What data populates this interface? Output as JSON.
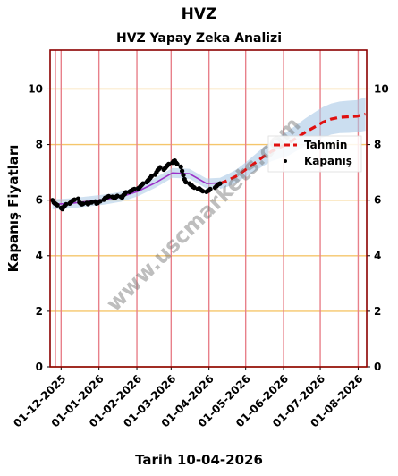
{
  "chart_data": {
    "type": "line",
    "suptitle": "HVZ",
    "title": "HVZ Yapay Zeka Analizi",
    "xlabel": "Tarih 10-04-2026",
    "ylabel": "Kapanış Fiyatları",
    "ylim": [
      0,
      11.4
    ],
    "yticks": [
      0,
      2,
      4,
      6,
      8,
      10
    ],
    "xlim": [
      "2025-11-22",
      "2026-08-08"
    ],
    "xticks": [
      "01-12-2025",
      "01-01-2026",
      "01-02-2026",
      "01-03-2026",
      "01-04-2026",
      "01-05-2026",
      "01-06-2026",
      "01-07-2026",
      "01-08-2026"
    ],
    "grid": {
      "horizontal_color": "#f5c66b",
      "vertical_color": "#e8808a"
    },
    "watermark": "www.uscmarkets.com",
    "legend_position": "right",
    "colors": {
      "close": "#000000",
      "forecast": "#e01010",
      "band": "#a9c8e6",
      "trend": "#9b30c8",
      "frame": "#8b0000"
    },
    "series": [
      {
        "name": "Kapanış",
        "style": "scatter",
        "x": [
          "2025-11-24",
          "2025-11-25",
          "2025-11-26",
          "2025-11-27",
          "2025-11-28",
          "2025-12-01",
          "2025-12-02",
          "2025-12-03",
          "2025-12-04",
          "2025-12-05",
          "2025-12-08",
          "2025-12-09",
          "2025-12-10",
          "2025-12-11",
          "2025-12-12",
          "2025-12-15",
          "2025-12-16",
          "2025-12-17",
          "2025-12-18",
          "2025-12-19",
          "2025-12-22",
          "2025-12-23",
          "2025-12-24",
          "2025-12-26",
          "2025-12-29",
          "2025-12-30",
          "2025-12-31",
          "2026-01-02",
          "2026-01-05",
          "2026-01-06",
          "2026-01-07",
          "2026-01-08",
          "2026-01-09",
          "2026-01-12",
          "2026-01-13",
          "2026-01-14",
          "2026-01-15",
          "2026-01-16",
          "2026-01-19",
          "2026-01-20",
          "2026-01-21",
          "2026-01-22",
          "2026-01-23",
          "2026-01-26",
          "2026-01-27",
          "2026-01-28",
          "2026-01-29",
          "2026-01-30",
          "2026-02-02",
          "2026-02-03",
          "2026-02-04",
          "2026-02-05",
          "2026-02-06",
          "2026-02-09",
          "2026-02-10",
          "2026-02-11",
          "2026-02-12",
          "2026-02-13",
          "2026-02-16",
          "2026-02-17",
          "2026-02-18",
          "2026-02-19",
          "2026-02-20",
          "2026-02-23",
          "2026-02-24",
          "2026-02-25",
          "2026-02-26",
          "2026-02-27",
          "2026-03-02",
          "2026-03-03",
          "2026-03-04",
          "2026-03-05",
          "2026-03-06",
          "2026-03-09",
          "2026-03-10",
          "2026-03-11",
          "2026-03-12",
          "2026-03-13",
          "2026-03-16",
          "2026-03-17",
          "2026-03-18",
          "2026-03-19",
          "2026-03-20",
          "2026-03-23",
          "2026-03-24",
          "2026-03-25",
          "2026-03-26",
          "2026-03-27",
          "2026-03-30",
          "2026-03-31",
          "2026-04-01",
          "2026-04-02",
          "2026-04-06",
          "2026-04-07",
          "2026-04-08",
          "2026-04-09",
          "2026-04-10"
        ],
        "values": [
          6.0,
          5.92,
          5.88,
          5.85,
          5.82,
          5.72,
          5.68,
          5.75,
          5.8,
          5.85,
          5.88,
          5.92,
          5.97,
          6.0,
          6.02,
          6.05,
          5.92,
          5.88,
          5.85,
          5.87,
          5.9,
          5.86,
          5.9,
          5.92,
          5.95,
          5.88,
          5.9,
          5.96,
          6.02,
          6.08,
          6.1,
          6.12,
          6.14,
          6.12,
          6.1,
          6.08,
          6.12,
          6.15,
          6.12,
          6.1,
          6.18,
          6.22,
          6.28,
          6.3,
          6.33,
          6.35,
          6.38,
          6.4,
          6.42,
          6.45,
          6.5,
          6.55,
          6.6,
          6.65,
          6.7,
          6.75,
          6.8,
          6.86,
          6.92,
          7.0,
          7.08,
          7.12,
          7.18,
          7.1,
          7.15,
          7.2,
          7.25,
          7.3,
          7.35,
          7.4,
          7.42,
          7.35,
          7.3,
          7.2,
          7.05,
          6.9,
          6.75,
          6.65,
          6.6,
          6.55,
          6.52,
          6.48,
          6.45,
          6.4,
          6.42,
          6.38,
          6.35,
          6.32,
          6.3,
          6.33,
          6.35,
          6.4,
          6.45,
          6.5,
          6.55,
          6.58,
          6.6
        ]
      },
      {
        "name": "Tahmin",
        "style": "dashed-line",
        "x": [
          "2026-04-10",
          "2026-04-17",
          "2026-04-24",
          "2026-05-01",
          "2026-05-08",
          "2026-05-15",
          "2026-05-22",
          "2026-05-29",
          "2026-06-05",
          "2026-06-12",
          "2026-06-19",
          "2026-06-26",
          "2026-07-03",
          "2026-07-10",
          "2026-07-17",
          "2026-07-24",
          "2026-07-31",
          "2026-08-07"
        ],
        "values": [
          6.6,
          6.72,
          6.88,
          7.1,
          7.32,
          7.55,
          7.75,
          7.9,
          8.05,
          8.25,
          8.45,
          8.62,
          8.8,
          8.92,
          8.98,
          9.0,
          9.02,
          9.1
        ],
        "band_upper": [
          6.8,
          6.95,
          7.12,
          7.36,
          7.62,
          7.88,
          8.1,
          8.3,
          8.5,
          8.72,
          8.95,
          9.15,
          9.35,
          9.48,
          9.55,
          9.58,
          9.6,
          9.7
        ],
        "band_lower": [
          6.4,
          6.5,
          6.64,
          6.84,
          7.02,
          7.22,
          7.4,
          7.5,
          7.6,
          7.78,
          7.95,
          8.1,
          8.25,
          8.36,
          8.41,
          8.42,
          8.44,
          8.5
        ]
      },
      {
        "style": "trend-line",
        "x": [
          "2025-11-24",
          "2025-12-08",
          "2025-12-22",
          "2026-01-05",
          "2026-01-19",
          "2026-02-02",
          "2026-02-16",
          "2026-03-02",
          "2026-03-16",
          "2026-03-30",
          "2026-04-10"
        ],
        "values": [
          5.85,
          5.88,
          5.95,
          6.02,
          6.12,
          6.32,
          6.62,
          6.98,
          6.95,
          6.6,
          6.62
        ]
      }
    ]
  }
}
